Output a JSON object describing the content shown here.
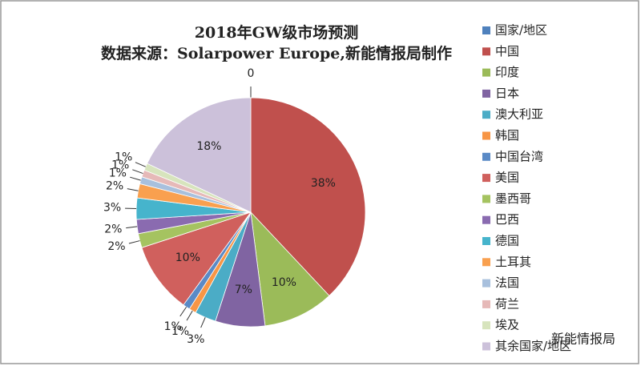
{
  "chart_data": {
    "type": "pie",
    "title": "2018年GW级市场预测",
    "subtitle": "数据来源：Solarpower Europe,新能情报局制作",
    "categories": [
      "国家/地区",
      "中国",
      "印度",
      "日本",
      "澳大利亚",
      "韩国",
      "中国台湾",
      "美国",
      "墨西哥",
      "巴西",
      "德国",
      "土耳其",
      "法国",
      "荷兰",
      "埃及",
      "其余国家/地区"
    ],
    "values": [
      0,
      38,
      10,
      7,
      3,
      1,
      1,
      10,
      2,
      2,
      3,
      2,
      1,
      1,
      1,
      18
    ],
    "value_labels": [
      "0",
      "38%",
      "10%",
      "7%",
      "3%",
      "1%",
      "1%",
      "10%",
      "2%",
      "2%",
      "3%",
      "2%",
      "1%",
      "1%",
      "1%",
      "18%"
    ],
    "colors": [
      "#4f81bd",
      "#c0504d",
      "#9bbb59",
      "#8064a2",
      "#4bacc6",
      "#f79646",
      "#5a8ac6",
      "#d0605d",
      "#a5c360",
      "#8a6bb0",
      "#46b4cc",
      "#f9a04f",
      "#a8c0dd",
      "#e6b9b8",
      "#d7e4bd",
      "#ccc1da"
    ],
    "watermark": "新能情报局"
  }
}
